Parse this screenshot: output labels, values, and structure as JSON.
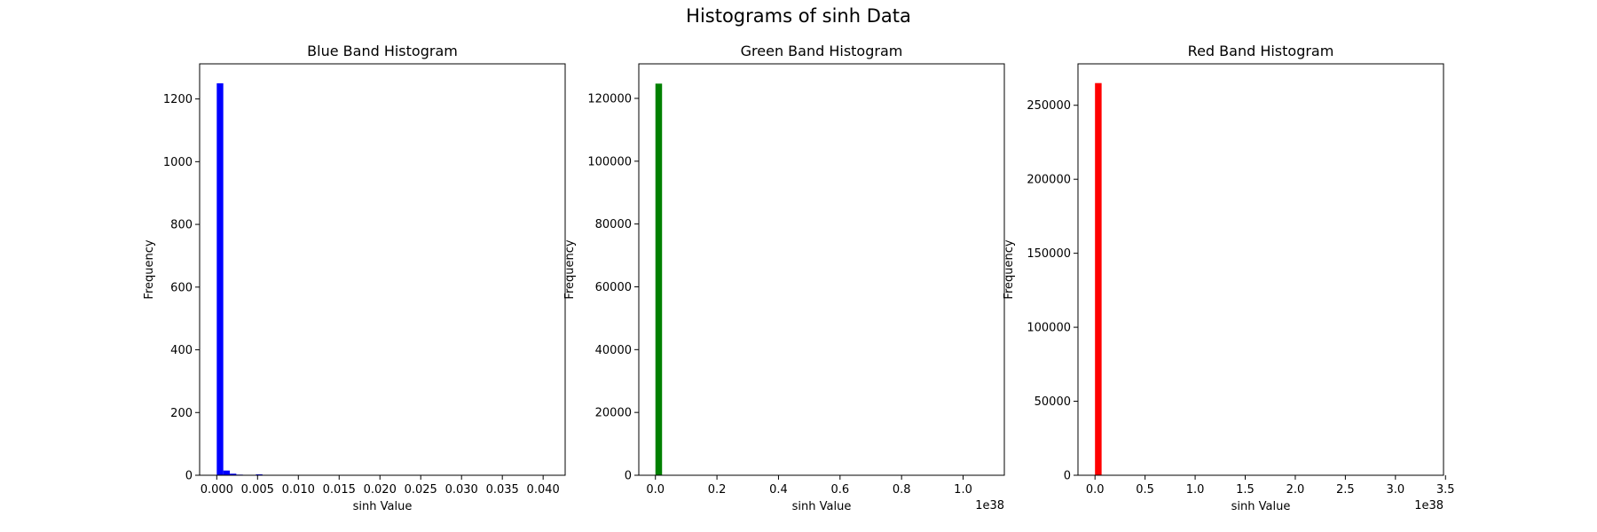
{
  "figure": {
    "title": "Histograms of sinh Data"
  },
  "chart_data": [
    {
      "type": "bar",
      "title": "Blue Band Histogram",
      "xlabel": "sinh Value",
      "ylabel": "Frequency",
      "color": "#0000ff",
      "xlim": [
        -0.0021,
        0.0427
      ],
      "ylim": [
        0,
        1312
      ],
      "xticks": [
        0.0,
        0.005,
        0.01,
        0.015,
        0.02,
        0.025,
        0.03,
        0.035,
        0.04
      ],
      "xtick_labels": [
        "0.000",
        "0.005",
        "0.010",
        "0.015",
        "0.020",
        "0.025",
        "0.030",
        "0.035",
        "0.040"
      ],
      "yticks": [
        0,
        200,
        400,
        600,
        800,
        1000,
        1200
      ],
      "ytick_labels": [
        "0",
        "200",
        "400",
        "600",
        "800",
        "1000",
        "1200"
      ],
      "offset_label": "",
      "bins": {
        "x": [
          0.0,
          0.0008,
          0.0016,
          0.0024,
          0.0032,
          0.004,
          0.0048,
          0.0056
        ],
        "width": 0.0008,
        "values": [
          1250,
          15,
          5,
          2,
          1,
          1,
          3,
          1
        ]
      }
    },
    {
      "type": "bar",
      "title": "Green Band Histogram",
      "xlabel": "sinh Value",
      "ylabel": "Frequency",
      "color": "#008000",
      "xlim": [
        -0.054,
        1.134
      ],
      "ylim": [
        0,
        131000
      ],
      "xticks": [
        0.0,
        0.2,
        0.4,
        0.6,
        0.8,
        1.0
      ],
      "xtick_labels": [
        "0.0",
        "0.2",
        "0.4",
        "0.6",
        "0.8",
        "1.0"
      ],
      "yticks": [
        0,
        20000,
        40000,
        60000,
        80000,
        100000,
        120000
      ],
      "ytick_labels": [
        "0",
        "20000",
        "40000",
        "60000",
        "80000",
        "100000",
        "120000"
      ],
      "offset_label": "1e38",
      "bins": {
        "x": [
          0.0
        ],
        "width": 0.0216,
        "values": [
          124700
        ]
      }
    },
    {
      "type": "bar",
      "title": "Red Band Histogram",
      "xlabel": "sinh Value",
      "ylabel": "Frequency",
      "color": "#ff0000",
      "xlim": [
        -0.17,
        3.48
      ],
      "ylim": [
        0,
        278000
      ],
      "xticks": [
        0.0,
        0.5,
        1.0,
        1.5,
        2.0,
        2.5,
        3.0,
        3.5
      ],
      "xtick_labels": [
        "0.0",
        "0.5",
        "1.0",
        "1.5",
        "2.0",
        "2.5",
        "3.0",
        "3.5"
      ],
      "yticks": [
        0,
        50000,
        100000,
        150000,
        200000,
        250000
      ],
      "ytick_labels": [
        "0",
        "50000",
        "100000",
        "150000",
        "200000",
        "250000"
      ],
      "offset_label": "1e38",
      "bins": {
        "x": [
          0.0
        ],
        "width": 0.066,
        "values": [
          265000
        ]
      }
    }
  ]
}
